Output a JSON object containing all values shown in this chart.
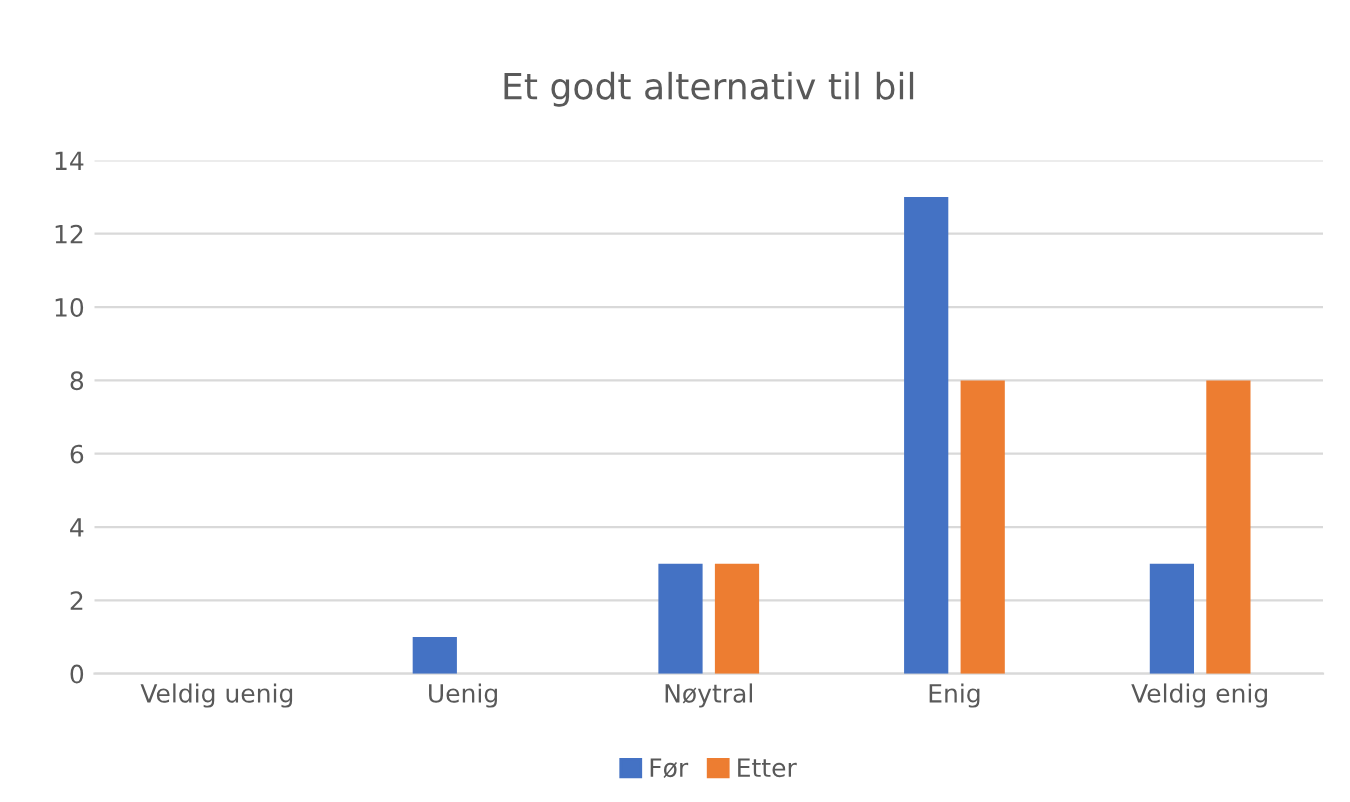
{
  "chart_data": {
    "type": "bar",
    "title": "Et godt alternativ til bil",
    "categories": [
      "Veldig uenig",
      "Uenig",
      "Nøytral",
      "Enig",
      "Veldig enig"
    ],
    "series": [
      {
        "name": "Før",
        "color": "#4472c4",
        "values": [
          0,
          1,
          3,
          13,
          3
        ]
      },
      {
        "name": "Etter",
        "color": "#ed7d31",
        "values": [
          0,
          0,
          3,
          8,
          8
        ]
      }
    ],
    "ylim": [
      0,
      14
    ],
    "yticks": [
      0,
      2,
      4,
      6,
      8,
      10,
      12,
      14
    ],
    "grid": "y",
    "legend": "bottom"
  }
}
